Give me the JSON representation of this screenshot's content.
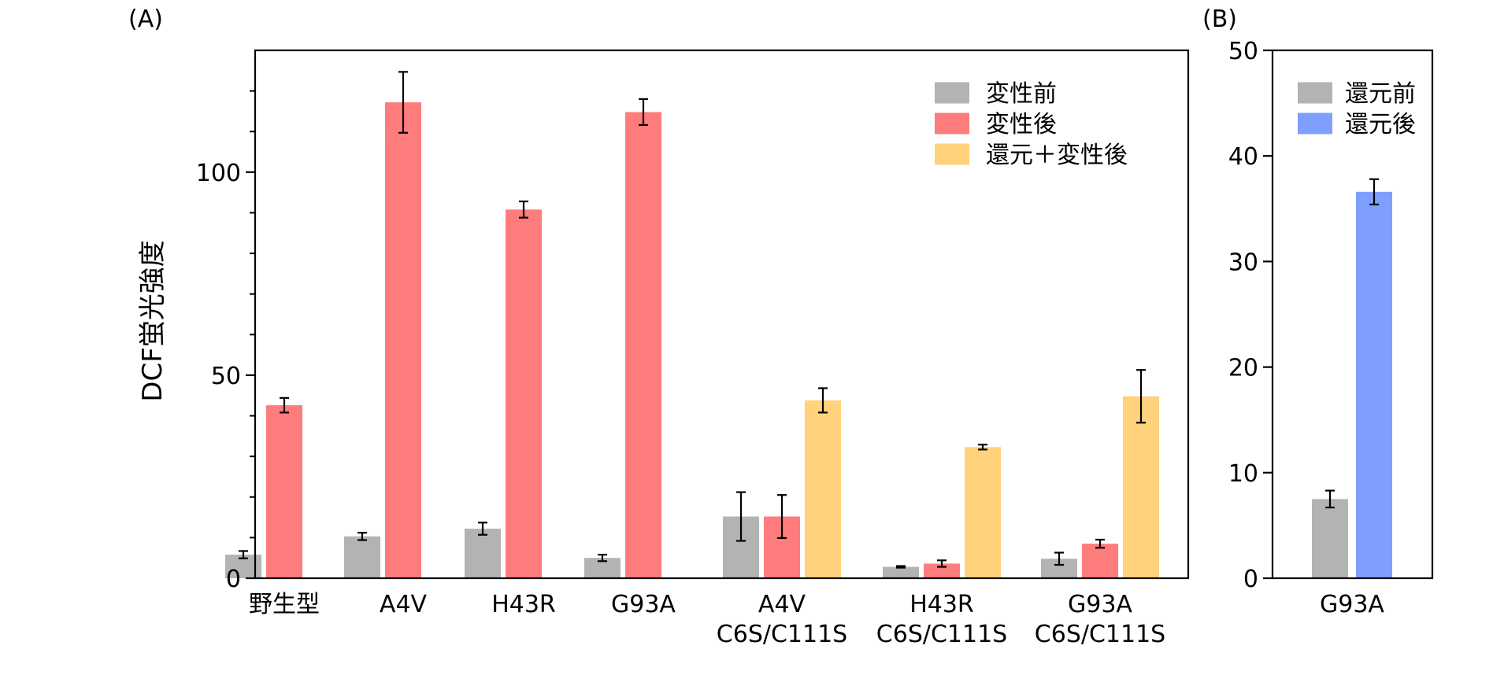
{
  "chart_data": [
    {
      "panel_label": "(A)",
      "type": "bar",
      "ylabel": "DCF蛍光強度",
      "ylim": [
        0,
        130
      ],
      "yticks": [
        0,
        50,
        100
      ],
      "minor_yticks": [
        10,
        20,
        30,
        40,
        60,
        70,
        80,
        90,
        110,
        120
      ],
      "grid": false,
      "legend_position": "top-right",
      "categories": [
        [
          "野生型"
        ],
        [
          "A4V"
        ],
        [
          "H43R"
        ],
        [
          "G93A"
        ],
        [
          "A4V",
          "C6S/C111S"
        ],
        [
          "H43R",
          "C6S/C111S"
        ],
        [
          "G93A",
          "C6S/C111S"
        ]
      ],
      "series": [
        {
          "name": "変性前",
          "color": "#b3b3b3",
          "values": [
            5.8,
            10.3,
            12.2,
            5.0,
            15.2,
            2.8,
            4.8
          ],
          "errors": [
            0.9,
            0.9,
            1.5,
            0.8,
            6.0,
            0.2,
            1.5
          ]
        },
        {
          "name": "変性後",
          "color": "#ff7c7c",
          "values": [
            42.6,
            117.2,
            90.8,
            114.8,
            15.2,
            3.6,
            8.5
          ],
          "errors": [
            1.8,
            7.5,
            2.0,
            3.2,
            5.3,
            0.8,
            1.0
          ]
        },
        {
          "name": "還元＋変性後",
          "color": "#ffd27b",
          "values": [
            null,
            null,
            null,
            null,
            43.8,
            32.3,
            44.8
          ],
          "errors": [
            null,
            null,
            null,
            null,
            3.0,
            0.6,
            6.5
          ]
        }
      ]
    },
    {
      "panel_label": "(B)",
      "type": "bar",
      "ylabel": "",
      "ylim": [
        0,
        50
      ],
      "yticks": [
        0,
        10,
        20,
        30,
        40,
        50
      ],
      "grid": false,
      "legend_position": "top-left",
      "categories": [
        [
          "G93A"
        ]
      ],
      "series": [
        {
          "name": "還元前",
          "color": "#b3b3b3",
          "values": [
            7.5
          ],
          "errors": [
            0.8
          ]
        },
        {
          "name": "還元後",
          "color": "#7f9fff",
          "values": [
            36.6
          ],
          "errors": [
            1.2
          ]
        }
      ]
    }
  ]
}
